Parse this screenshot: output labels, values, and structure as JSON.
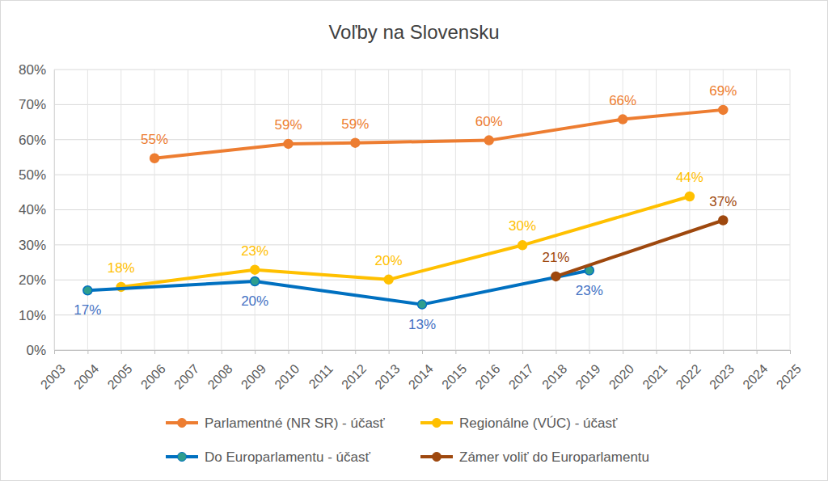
{
  "chart_data": {
    "type": "line",
    "title": "Voľby na Slovensku",
    "xlim": [
      2003,
      2025
    ],
    "xticks": [
      2003,
      2004,
      2005,
      2006,
      2007,
      2008,
      2009,
      2010,
      2011,
      2012,
      2013,
      2014,
      2015,
      2016,
      2017,
      2018,
      2019,
      2020,
      2021,
      2022,
      2023,
      2024,
      2025
    ],
    "ylim": [
      0,
      80
    ],
    "yticks": [
      {
        "value": 0,
        "label": "0%"
      },
      {
        "value": 10,
        "label": "10%"
      },
      {
        "value": 20,
        "label": "20%"
      },
      {
        "value": 30,
        "label": "30%"
      },
      {
        "value": 40,
        "label": "40%"
      },
      {
        "value": 50,
        "label": "50%"
      },
      {
        "value": 60,
        "label": "60%"
      },
      {
        "value": 70,
        "label": "70%"
      },
      {
        "value": 80,
        "label": "80%"
      }
    ],
    "grid": true,
    "legend": "bottom",
    "data_labels": true,
    "series": [
      {
        "name": "Parlamentné (NR SR) - účasť",
        "color": "#ed7d31",
        "marker": "circle",
        "x": [
          2006,
          2010,
          2012,
          2016,
          2020,
          2023
        ],
        "values": [
          54.7,
          58.8,
          59.1,
          59.8,
          65.8,
          68.5
        ],
        "value_labels": [
          "55%",
          "59%",
          "59%",
          "60%",
          "66%",
          "69%"
        ]
      },
      {
        "name": "Regionálne (VÚC) - účasť",
        "color": "#ffc000",
        "marker": "circle",
        "x": [
          2005,
          2009,
          2013,
          2017,
          2022
        ],
        "values": [
          18,
          22.9,
          20.1,
          29.9,
          43.8
        ],
        "value_labels": [
          "18%",
          "23%",
          "20%",
          "30%",
          "44%"
        ]
      },
      {
        "name": "Do Europarlamentu - účasť",
        "color": "#0070c0",
        "marker": "circle",
        "x": [
          2004,
          2009,
          2014,
          2019
        ],
        "values": [
          17,
          19.6,
          13,
          22.7
        ],
        "value_labels": [
          "17%",
          "20%",
          "13%",
          "23%"
        ]
      },
      {
        "name": "Zámer voliť do Europarlamentu",
        "color": "#9e480e",
        "marker": "circle",
        "x": [
          2018,
          2023
        ],
        "values": [
          21,
          37
        ],
        "value_labels": [
          "21%",
          "37%"
        ]
      }
    ]
  }
}
